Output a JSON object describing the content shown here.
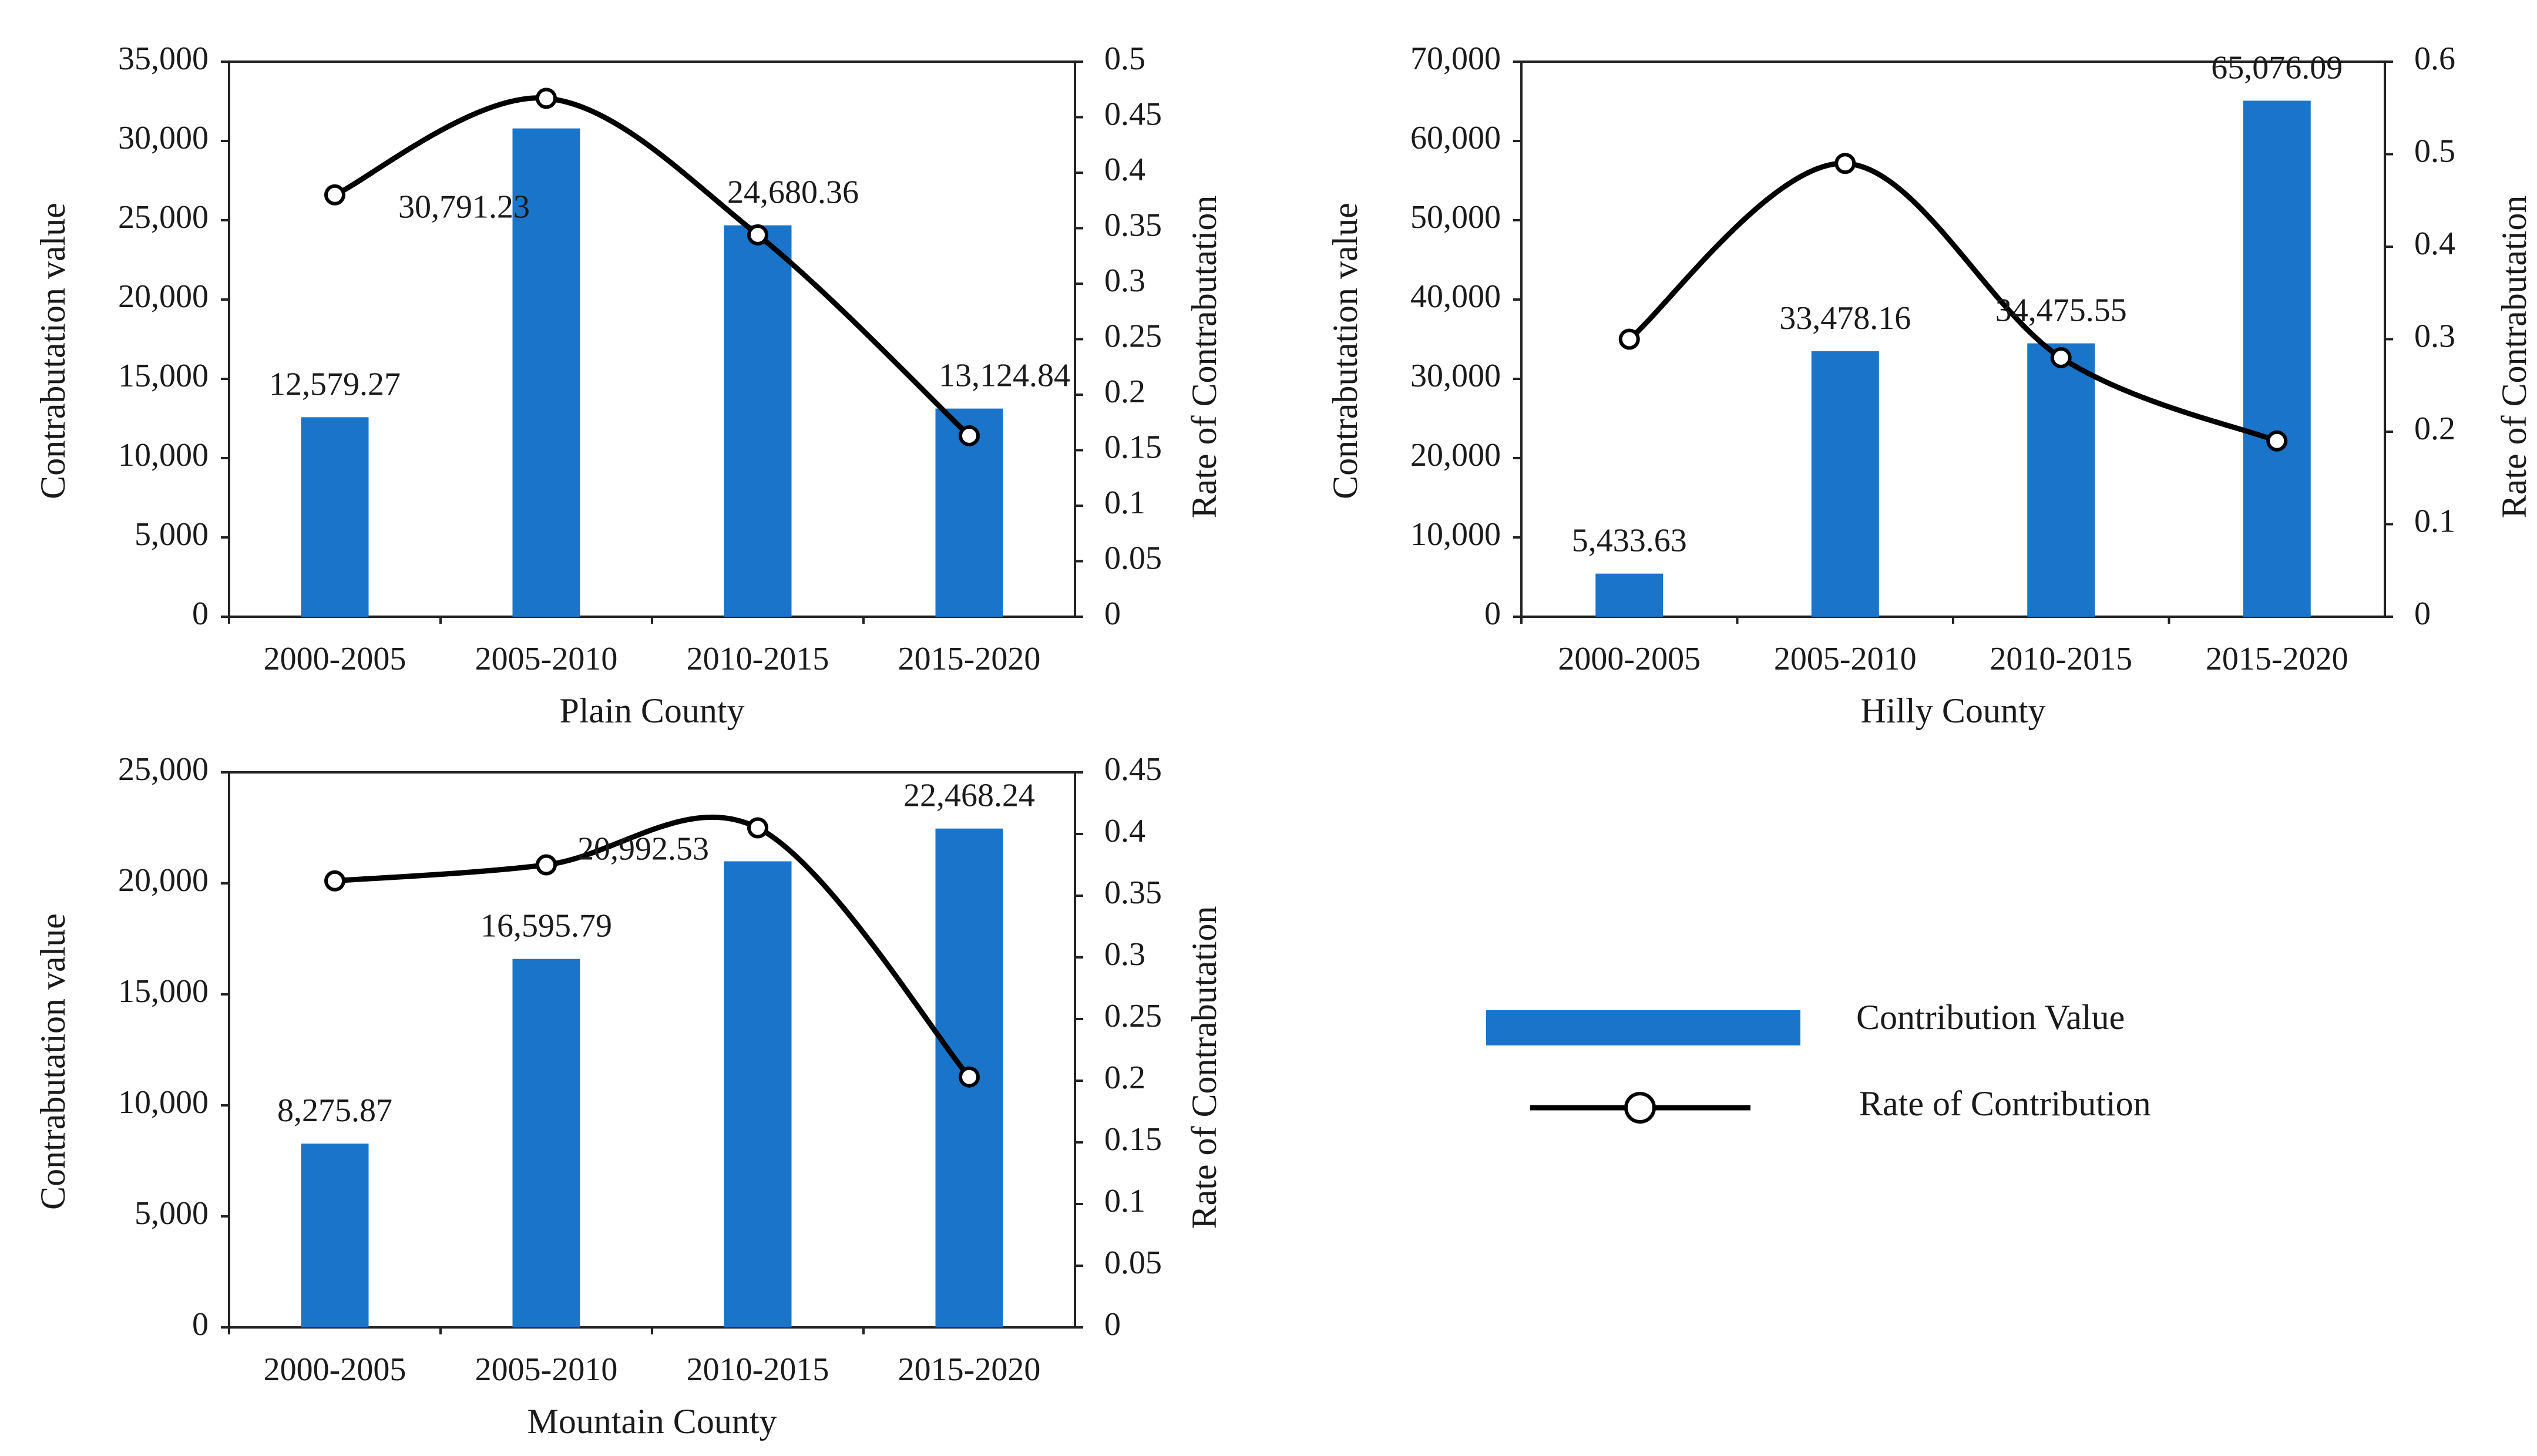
{
  "chart_data": [
    {
      "type": "bar+line",
      "title": "Plain County",
      "categories": [
        "2000-2005",
        "2005-2010",
        "2010-2015",
        "2015-2020"
      ],
      "series": [
        {
          "name": "Contribution Value",
          "axis": "left",
          "values": [
            12579.27,
            30791.23,
            24680.36,
            13124.84
          ],
          "labels": [
            "12,579.27",
            "30,791.23",
            "24,680.36",
            "13,124.84"
          ]
        },
        {
          "name": "Rate of Contribution",
          "axis": "right",
          "values": [
            0.38,
            0.467,
            0.344,
            0.163
          ]
        }
      ],
      "ylabel": "Contrabutation  value",
      "y2label": "Rate  of  Contrabutation",
      "ylim": [
        0,
        35000
      ],
      "y2lim": [
        0,
        0.5
      ],
      "yticks": [
        "0",
        "5,000",
        "10,000",
        "15,000",
        "20,000",
        "25,000",
        "30,000",
        "35,000"
      ],
      "y2ticks": [
        "0",
        "0.05",
        "0.1",
        "0.15",
        "0.2",
        "0.25",
        "0.3",
        "0.35",
        "0.4",
        "0.45",
        "0.5"
      ]
    },
    {
      "type": "bar+line",
      "title": "Hilly County",
      "categories": [
        "2000-2005",
        "2005-2010",
        "2010-2015",
        "2015-2020"
      ],
      "series": [
        {
          "name": "Contribution Value",
          "axis": "left",
          "values": [
            5433.63,
            33478.16,
            34475.55,
            65076.09
          ],
          "labels": [
            "5,433.63",
            "33,478.16",
            "34,475.55",
            "65,076.09"
          ]
        },
        {
          "name": "Rate of Contribution",
          "axis": "right",
          "values": [
            0.3,
            0.49,
            0.28,
            0.19
          ]
        }
      ],
      "ylabel": "Contrabutation  value",
      "y2label": "Rate  of  Contrabutation",
      "ylim": [
        0,
        70000
      ],
      "y2lim": [
        0,
        0.6
      ],
      "yticks": [
        "0",
        "10,000",
        "20,000",
        "30,000",
        "40,000",
        "50,000",
        "60,000",
        "70,000"
      ],
      "y2ticks": [
        "0",
        "0.1",
        "0.2",
        "0.3",
        "0.4",
        "0.5",
        "0.6"
      ]
    },
    {
      "type": "bar+line",
      "title": "Mountain County",
      "categories": [
        "2000-2005",
        "2005-2010",
        "2010-2015",
        "2015-2020"
      ],
      "series": [
        {
          "name": "Contribution Value",
          "axis": "left",
          "values": [
            8275.87,
            16595.79,
            20992.53,
            22468.24
          ],
          "labels": [
            "8,275.87",
            "16,595.79",
            "20,992.53",
            "22,468.24"
          ]
        },
        {
          "name": "Rate of Contribution",
          "axis": "right",
          "values": [
            0.362,
            0.375,
            0.405,
            0.203
          ]
        }
      ],
      "ylabel": "Contrabutation  value",
      "y2label": "Rate  of  Contrabutation",
      "ylim": [
        0,
        25000
      ],
      "y2lim": [
        0,
        0.45
      ],
      "yticks": [
        "0",
        "5,000",
        "10,000",
        "15,000",
        "20,000",
        "25,000"
      ],
      "y2ticks": [
        "0",
        "0.05",
        "0.1",
        "0.15",
        "0.2",
        "0.25",
        "0.3",
        "0.35",
        "0.4",
        "0.45"
      ]
    }
  ],
  "legend": {
    "bar_label": "Contribution Value",
    "line_label": "Rate of Contribution",
    "bar_color": "#1a74c9",
    "line_color": "#000000"
  }
}
